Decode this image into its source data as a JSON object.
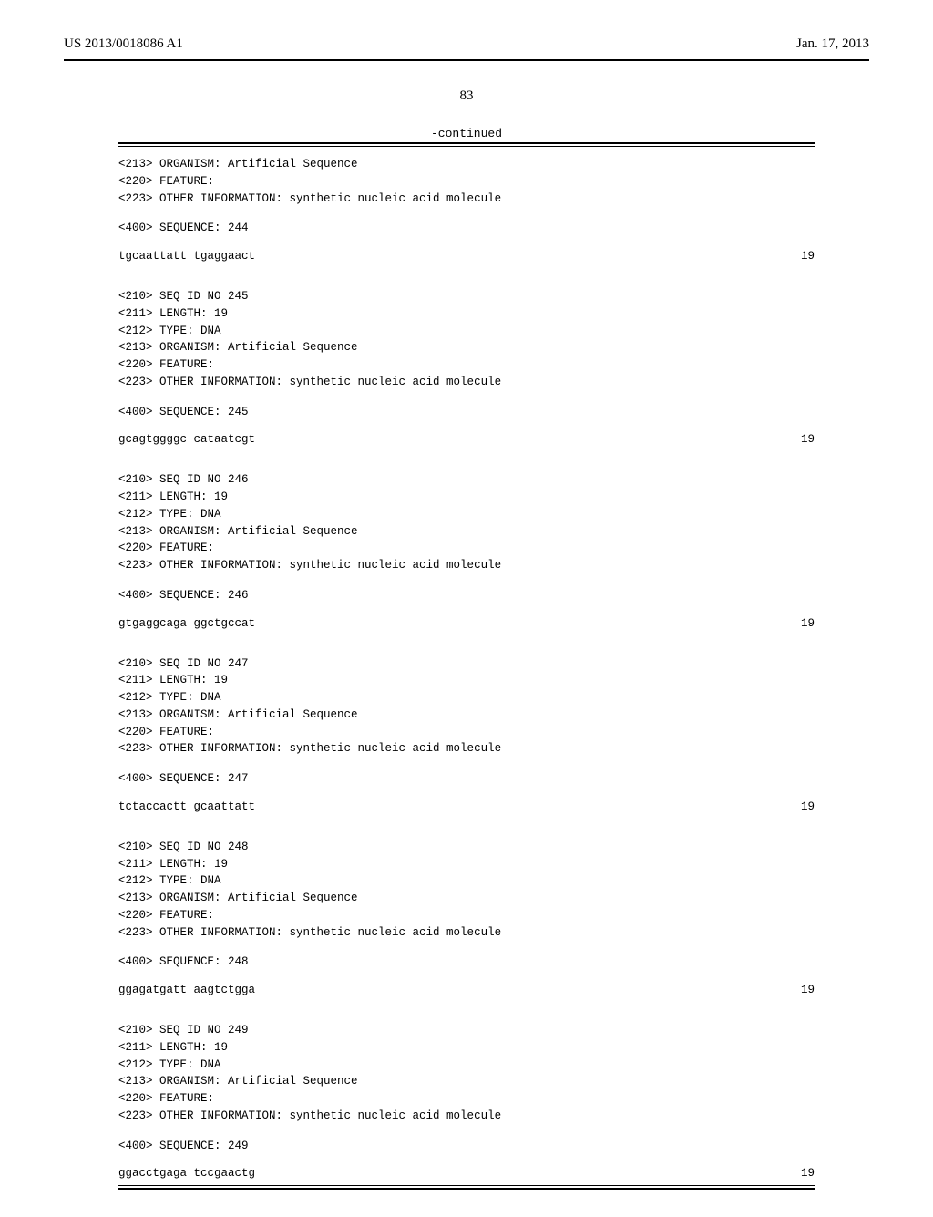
{
  "header": {
    "pub_number": "US 2013/0018086 A1",
    "pub_date": "Jan. 17, 2013"
  },
  "page_number": "83",
  "continued_label": "-continued",
  "top_fragment": {
    "lines": [
      "<213> ORGANISM: Artificial Sequence",
      "<220> FEATURE:",
      "<223> OTHER INFORMATION: synthetic nucleic acid molecule"
    ],
    "seq_label": "<400> SEQUENCE: 244",
    "sequence": "tgcaattatt tgaggaact",
    "length": "19"
  },
  "entries": [
    {
      "seq_id": "245",
      "length_decl": "19",
      "type": "DNA",
      "organism": "Artificial Sequence",
      "feature": "",
      "other_info": "synthetic nucleic acid molecule",
      "seq_label": "<400> SEQUENCE: 245",
      "sequence": "gcagtggggc cataatcgt",
      "length": "19"
    },
    {
      "seq_id": "246",
      "length_decl": "19",
      "type": "DNA",
      "organism": "Artificial Sequence",
      "feature": "",
      "other_info": "synthetic nucleic acid molecule",
      "seq_label": "<400> SEQUENCE: 246",
      "sequence": "gtgaggcaga ggctgccat",
      "length": "19"
    },
    {
      "seq_id": "247",
      "length_decl": "19",
      "type": "DNA",
      "organism": "Artificial Sequence",
      "feature": "",
      "other_info": "synthetic nucleic acid molecule",
      "seq_label": "<400> SEQUENCE: 247",
      "sequence": "tctaccactt gcaattatt",
      "length": "19"
    },
    {
      "seq_id": "248",
      "length_decl": "19",
      "type": "DNA",
      "organism": "Artificial Sequence",
      "feature": "",
      "other_info": "synthetic nucleic acid molecule",
      "seq_label": "<400> SEQUENCE: 248",
      "sequence": "ggagatgatt aagtctgga",
      "length": "19"
    },
    {
      "seq_id": "249",
      "length_decl": "19",
      "type": "DNA",
      "organism": "Artificial Sequence",
      "feature": "",
      "other_info": "synthetic nucleic acid molecule",
      "seq_label": "<400> SEQUENCE: 249",
      "sequence": "ggacctgaga tccgaactg",
      "length": "19"
    }
  ],
  "labels": {
    "seq_id_prefix": "<210> SEQ ID NO ",
    "length_prefix": "<211> LENGTH: ",
    "type_prefix": "<212> TYPE: ",
    "organism_prefix": "<213> ORGANISM: ",
    "feature_prefix": "<220> FEATURE:",
    "other_info_prefix": "<223> OTHER INFORMATION: "
  }
}
